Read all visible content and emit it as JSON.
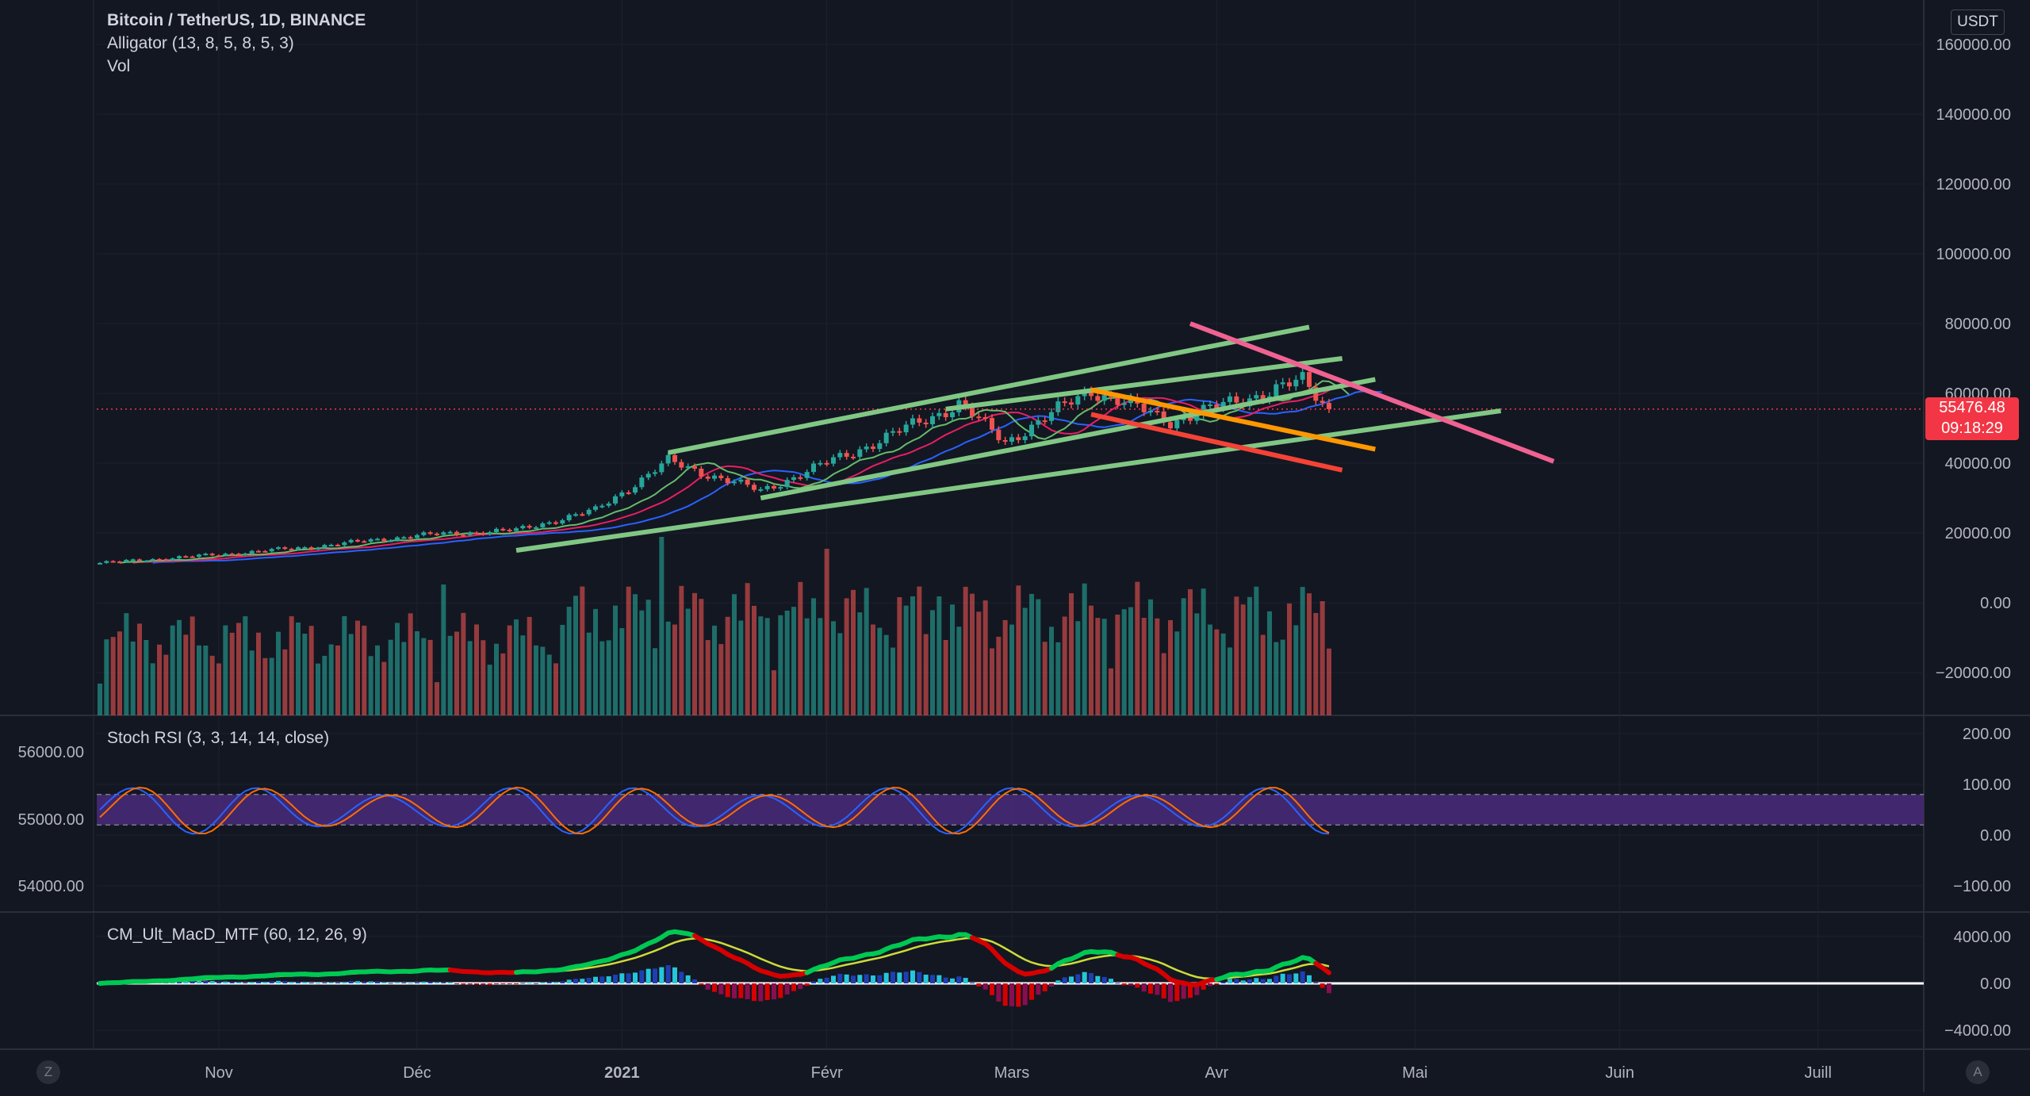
{
  "header": {
    "symbol_line": "Bitcoin / TetherUS, 1D, BINANCE",
    "alligator_label": "Alligator (13, 8, 5, 8, 5, 3)",
    "volume_label": "Vol",
    "currency": "USDT"
  },
  "last_price": {
    "value": "55476.48",
    "countdown": "09:18:29"
  },
  "panes": {
    "stoch_rsi_label": "Stoch RSI (3, 3, 14, 14, close)",
    "macd_label": "CM_Ult_MacD_MTF (60, 12, 26, 9)"
  },
  "bottom": {
    "left_button": "Z",
    "right_button": "A"
  },
  "colors": {
    "background": "#131722",
    "up": "#26a69a",
    "down": "#ef5350",
    "trendline_green": "#81c784",
    "trendline_pink": "#f06292",
    "trendline_orange": "#ff9800",
    "trendline_red": "#f44336",
    "stoch_k": "#2962ff",
    "stoch_d": "#ff6d00",
    "stoch_band": "#4a2a7a",
    "macd_up": "#00c853",
    "macd_down": "#d50000"
  },
  "chart_data": [
    {
      "type": "line",
      "title": "Bitcoin / TetherUS, 1D, BINANCE",
      "xlabel": "",
      "ylabel": "",
      "x_ticks": [
        "Nov",
        "Déc",
        "2021",
        "Févr",
        "Mars",
        "Avr",
        "Mai",
        "Juin",
        "Juill"
      ],
      "y_ticks": [
        "160000.00",
        "140000.00",
        "120000.00",
        "100000.00",
        "80000.00",
        "60000.00",
        "40000.00",
        "20000.00",
        "0.00",
        "−20000.00"
      ],
      "ylim": [
        -30000,
        165000
      ],
      "price_x": [
        "2020-10-14",
        "2020-11-01",
        "2020-11-15",
        "2020-12-01",
        "2020-12-16",
        "2020-12-28",
        "2021-01-08",
        "2021-01-22",
        "2021-02-09",
        "2021-02-21",
        "2021-02-28",
        "2021-03-13",
        "2021-03-25",
        "2021-04-14",
        "2021-04-18"
      ],
      "price_close": [
        11400,
        13800,
        16000,
        19300,
        20800,
        26500,
        40500,
        32000,
        46500,
        57000,
        46000,
        61000,
        52000,
        63500,
        55476
      ],
      "last_price": 55476.48,
      "grid": true
    },
    {
      "type": "line",
      "title": "Stoch RSI (3, 3, 14, 14, close)",
      "y_ticks": [
        "200.00",
        "100.00",
        "0.00",
        "−100.00"
      ],
      "ylim": [
        -150,
        210
      ],
      "band": [
        20,
        80
      ],
      "left_axis_ticks": [
        "56000.00",
        "55000.00",
        "54000.00"
      ]
    },
    {
      "type": "line",
      "title": "CM_Ult_MacD_MTF (60, 12, 26, 9)",
      "y_ticks": [
        "4000.00",
        "0.00",
        "−4000.00"
      ],
      "ylim": [
        -5000,
        5000
      ]
    }
  ]
}
